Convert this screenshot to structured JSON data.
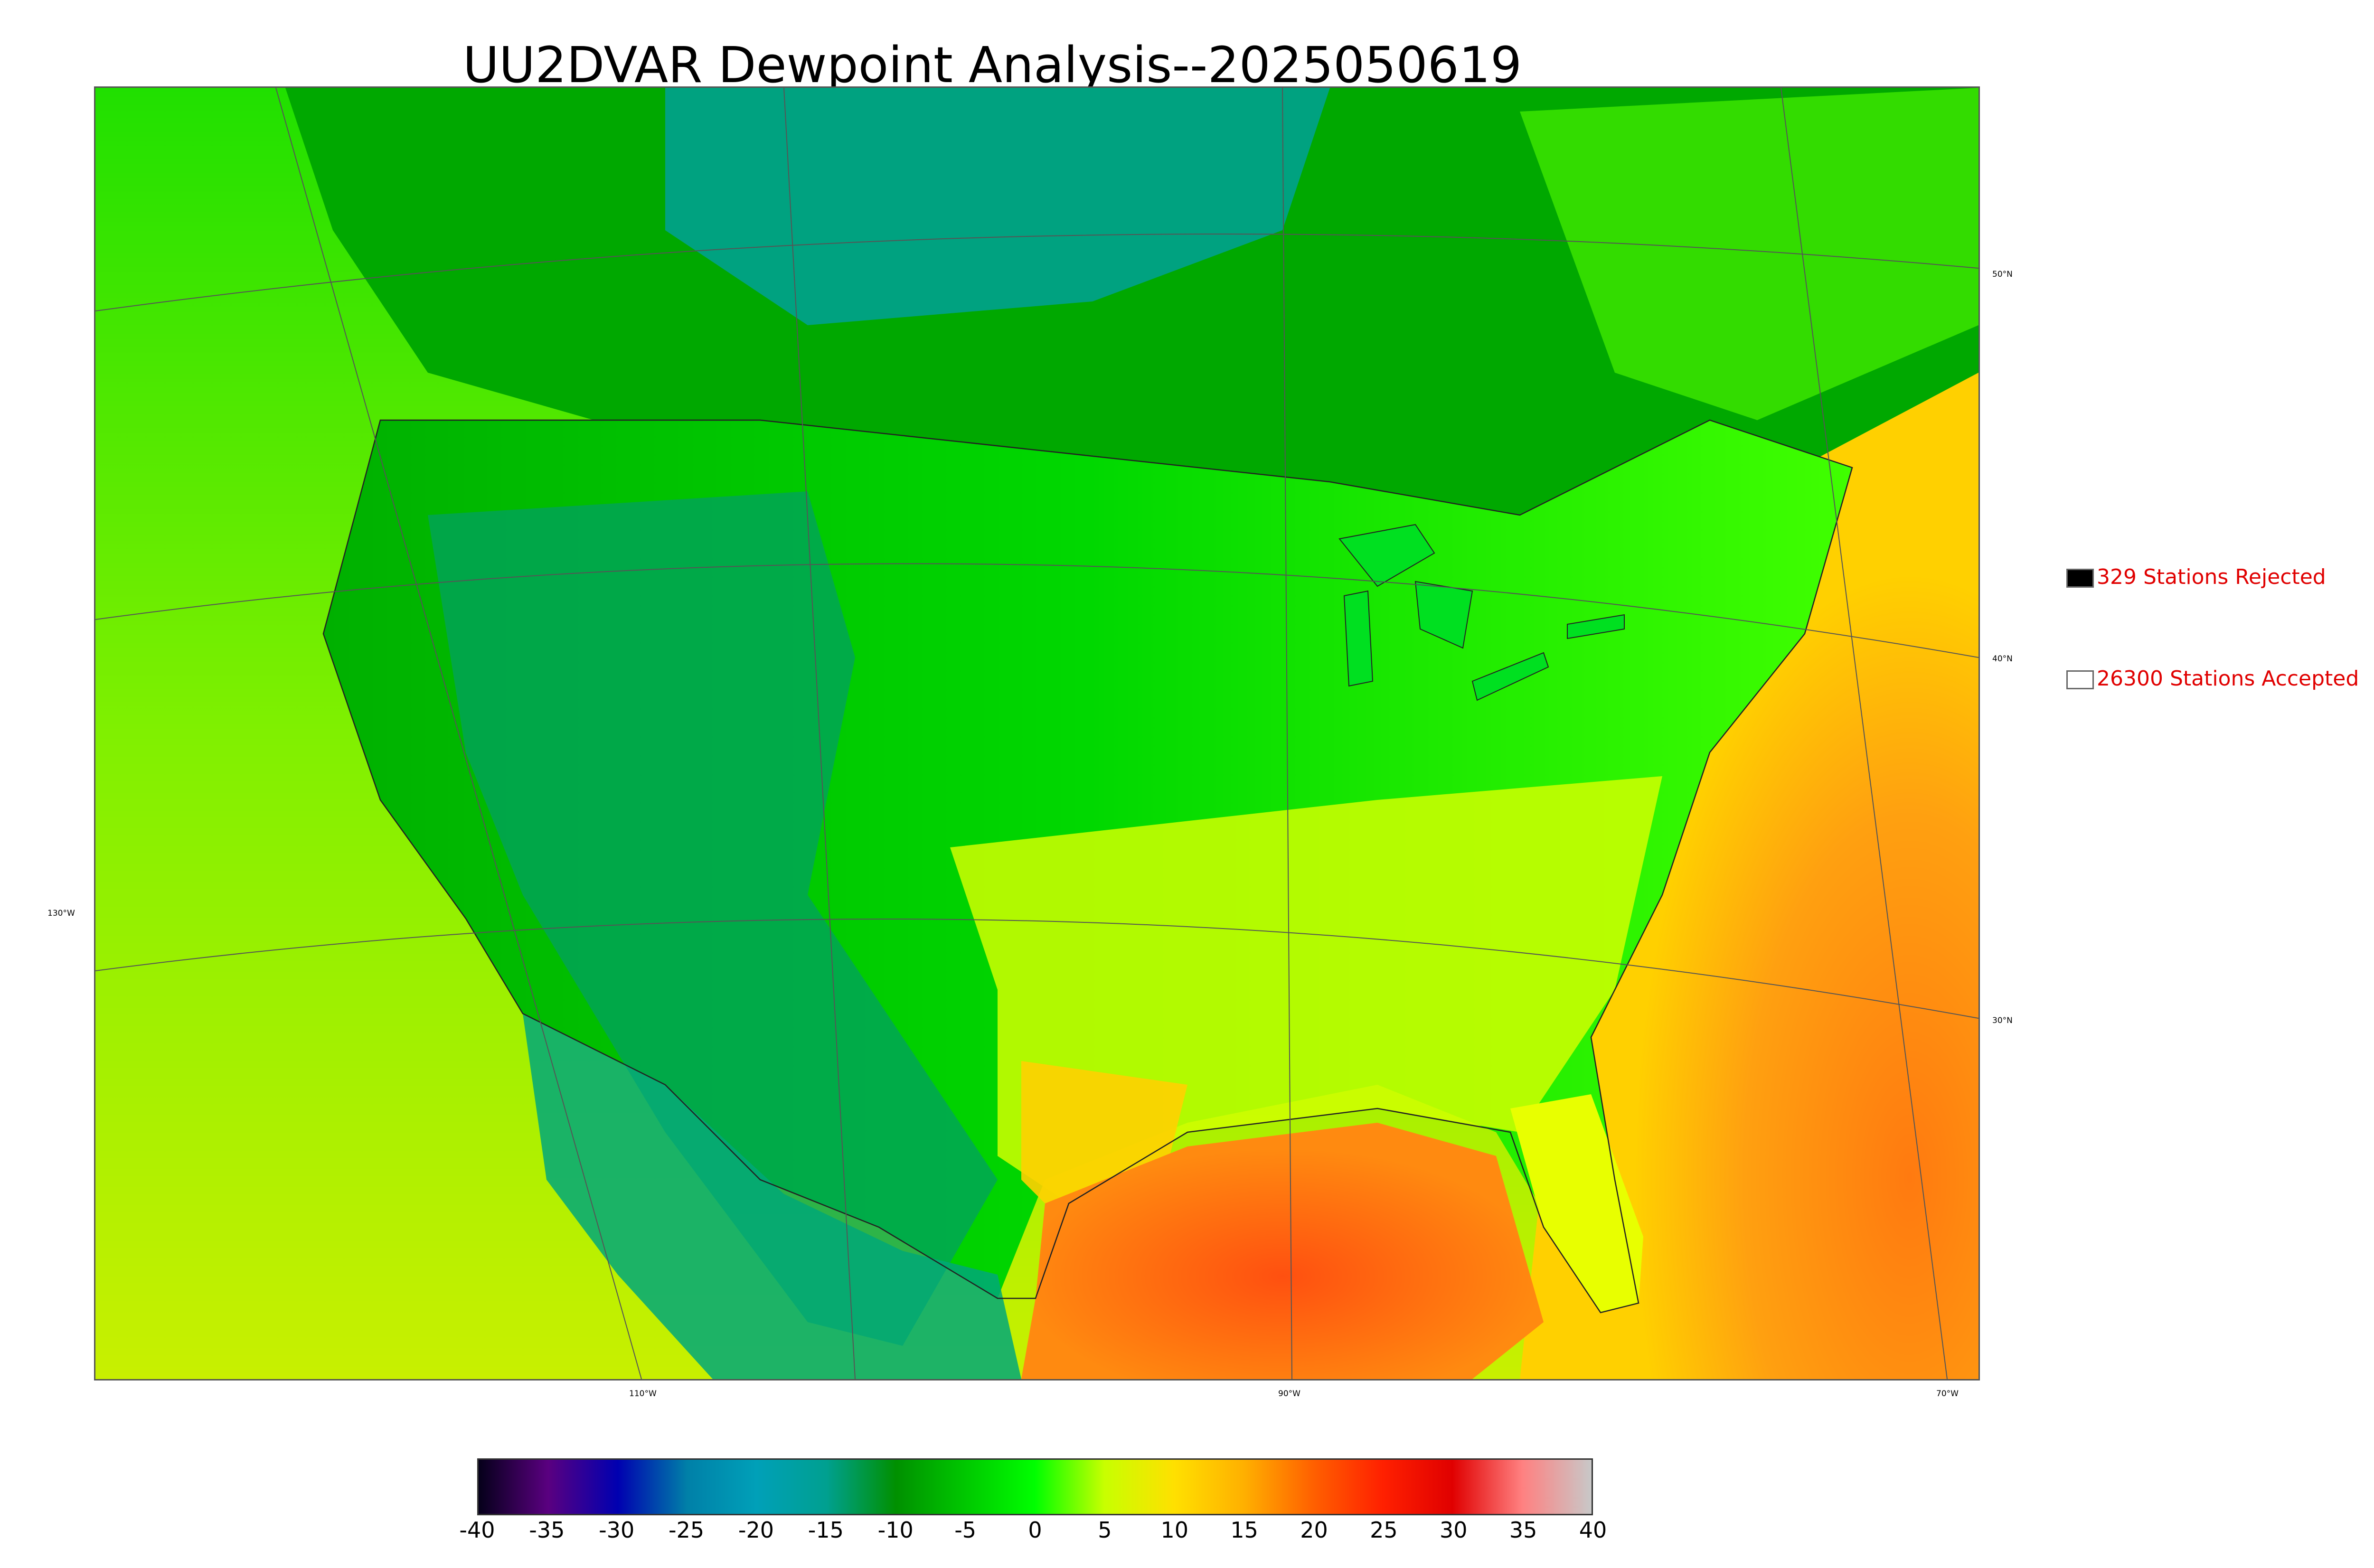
{
  "title": "UU2DVAR Dewpoint Analysis--2025050619",
  "legend": {
    "rejected": {
      "text": "329 Stations Rejected",
      "color": "#000000"
    },
    "accepted": {
      "text": "26300 Stations Accepted",
      "color": "#ffffff"
    }
  },
  "latitude_labels": [
    "50°N",
    "40°N",
    "30°N"
  ],
  "longitude_labels": [
    "130°W",
    "110°W",
    "90°W",
    "70°W"
  ],
  "colorbar": {
    "ticks": [
      "-40",
      "-35",
      "-30",
      "-25",
      "-20",
      "-15",
      "-10",
      "-5",
      "0",
      "5",
      "10",
      "15",
      "20",
      "25",
      "30",
      "35",
      "40"
    ],
    "range": [
      -40,
      40
    ],
    "colors": [
      "#05001a",
      "#5a0080",
      "#0000b0",
      "#0080a8",
      "#00a0b8",
      "#00a090",
      "#009000",
      "#00c800",
      "#00ff00",
      "#c8ff00",
      "#ffe000",
      "#ffb000",
      "#ff6000",
      "#ff2000",
      "#e00000",
      "#ff8080",
      "#c8c8c8"
    ]
  },
  "map": {
    "region": "CONUS",
    "variable": "Dewpoint",
    "ocean_colors": {
      "pacific": "#a8e800",
      "atlantic": "#ffb400",
      "gulf": "#ff6010"
    },
    "land_colors": {
      "north": "#00a000",
      "interior": "#00d000",
      "rockies": "#009060",
      "southeast": "#d8ff00",
      "texas_coast": "#ffd000",
      "canada_shield": "#00b0a0"
    }
  }
}
